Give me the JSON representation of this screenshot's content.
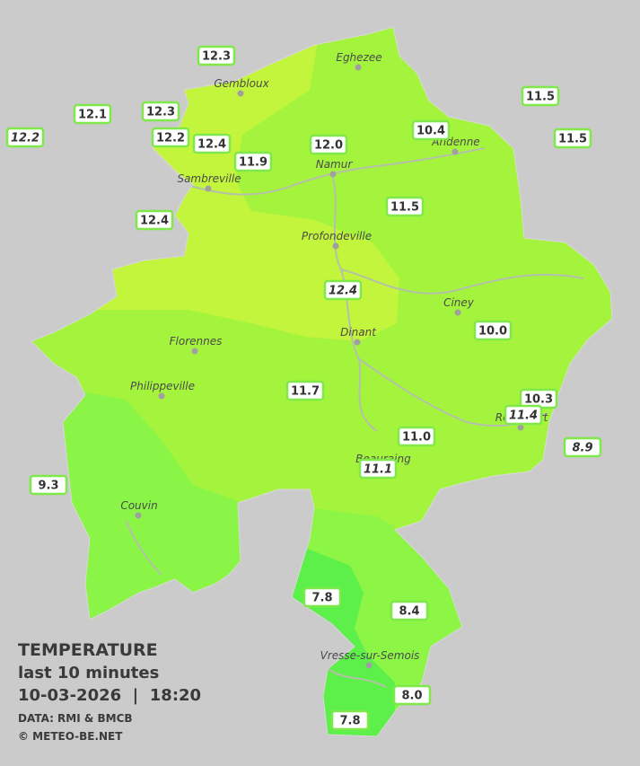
{
  "legend": {
    "title": "TEMPERATURE",
    "subtitle": "last 10 minutes",
    "datetime": "10-03-2026  |  18:20",
    "source": "DATA: RMI & BMCB",
    "copyright": "© METEO-BE.NET"
  },
  "towns": [
    "Eghezee",
    "Gembloux",
    "Andenne",
    "Namur",
    "Sambreville",
    "Profondeville",
    "Ciney",
    "Dinant",
    "Florennes",
    "Philippeville",
    "Rochefort",
    "Beauraing",
    "Couvin",
    "Vresse-sur-Semois"
  ],
  "stations": [
    {
      "reading": "12.3",
      "italic": false
    },
    {
      "reading": "12.1",
      "italic": false
    },
    {
      "reading": "12.3",
      "italic": false
    },
    {
      "reading": "12.2",
      "italic": true
    },
    {
      "reading": "12.2",
      "italic": false
    },
    {
      "reading": "12.4",
      "italic": false
    },
    {
      "reading": "11.9",
      "italic": false
    },
    {
      "reading": "12.0",
      "italic": false
    },
    {
      "reading": "10.4",
      "italic": false
    },
    {
      "reading": "11.5",
      "italic": false
    },
    {
      "reading": "11.5",
      "italic": false
    },
    {
      "reading": "11.5",
      "italic": false
    },
    {
      "reading": "12.4",
      "italic": false
    },
    {
      "reading": "12.4",
      "italic": true
    },
    {
      "reading": "10.0",
      "italic": false
    },
    {
      "reading": "11.7",
      "italic": false
    },
    {
      "reading": "10.3",
      "italic": false
    },
    {
      "reading": "11.4",
      "italic": true
    },
    {
      "reading": "8.9",
      "italic": true
    },
    {
      "reading": "11.0",
      "italic": false
    },
    {
      "reading": "11.1",
      "italic": true
    },
    {
      "reading": "9.3",
      "italic": false
    },
    {
      "reading": "7.8",
      "italic": false
    },
    {
      "reading": "8.4",
      "italic": false
    },
    {
      "reading": "8.0",
      "italic": false
    },
    {
      "reading": "7.8",
      "italic": false
    }
  ]
}
